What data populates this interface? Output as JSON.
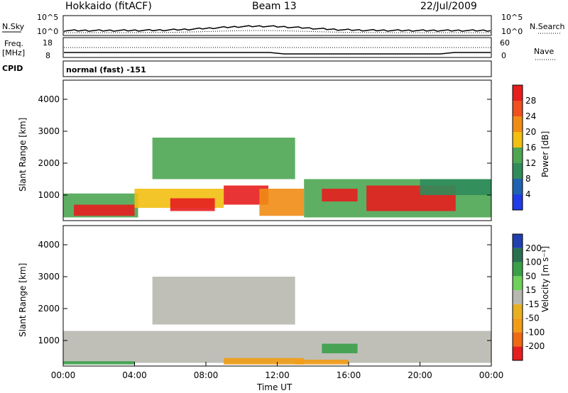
{
  "header": {
    "left_title": "Hokkaido (fitACF)",
    "center_title": "Beam 13",
    "date": "22/Jul/2009"
  },
  "panels": {
    "nsky_label": "N.Sky",
    "nsearch_label": "N.Search",
    "noise_ticks": [
      "10^5",
      "10^0"
    ],
    "noise_right_ticks": [
      "10^5",
      "10^0"
    ],
    "freq_label_1": "Freq.",
    "freq_label_2": "[MHz]",
    "freq_ticks": [
      "18",
      "8"
    ],
    "nave_label": "Nave",
    "nave_ticks": [
      "60",
      "0"
    ],
    "cpid_label": "CPID",
    "cpid_value": "normal (fast) -151"
  },
  "colors": {
    "power_scale": [
      "#1f3ae6",
      "#1f63b0",
      "#2f8c5a",
      "#4da652",
      "#f2bf12",
      "#f08c14",
      "#f0501e",
      "#e61e1e"
    ],
    "velocity_scale": [
      "#e61e1e",
      "#ee6a14",
      "#f29c16",
      "#e8b020",
      "#b8b8b0",
      "#6fd05a",
      "#3aa048",
      "#2a7050",
      "#2040b0"
    ]
  },
  "chart_data": [
    {
      "type": "heatmap",
      "quantity": "Power",
      "ylabel": "Slant Range [km]",
      "colorbar_label": "Power [dB]",
      "colorbar_ticks": [
        "28",
        "24",
        "20",
        "16",
        "12",
        "8",
        "4"
      ],
      "y_ticks": [
        "4000",
        "3000",
        "2000",
        "1000"
      ],
      "ylim": [
        200,
        4600
      ],
      "xlim_hours": [
        0,
        24
      ],
      "regions": [
        {
          "t0": 0.0,
          "t1": 4.2,
          "r0": 300,
          "r1": 1050,
          "db": 14
        },
        {
          "t0": 0.6,
          "t1": 4.0,
          "r0": 350,
          "r1": 700,
          "db": 28
        },
        {
          "t0": 4.0,
          "t1": 9.0,
          "r0": 600,
          "r1": 1200,
          "db": 18
        },
        {
          "t0": 6.0,
          "t1": 8.5,
          "r0": 500,
          "r1": 900,
          "db": 28
        },
        {
          "t0": 5.0,
          "t1": 13.0,
          "r0": 1500,
          "r1": 2800,
          "db": 12
        },
        {
          "t0": 9.0,
          "t1": 11.5,
          "r0": 700,
          "r1": 1300,
          "db": 28
        },
        {
          "t0": 11.0,
          "t1": 13.5,
          "r0": 350,
          "r1": 1200,
          "db": 22
        },
        {
          "t0": 13.5,
          "t1": 24.0,
          "r0": 300,
          "r1": 1500,
          "db": 14
        },
        {
          "t0": 14.5,
          "t1": 16.5,
          "r0": 800,
          "r1": 1200,
          "db": 28
        },
        {
          "t0": 17.0,
          "t1": 22.0,
          "r0": 500,
          "r1": 1300,
          "db": 28
        },
        {
          "t0": 20.0,
          "t1": 24.0,
          "r0": 1000,
          "r1": 1500,
          "db": 8
        }
      ]
    },
    {
      "type": "heatmap",
      "quantity": "Velocity",
      "ylabel": "Slant Range [km]",
      "colorbar_label": "Velocity [m s⁻¹]",
      "colorbar_ticks": [
        "200",
        "100",
        "50",
        "15",
        "-15",
        "-50",
        "-100",
        "-200"
      ],
      "y_ticks": [
        "4000",
        "3000",
        "2000",
        "1000"
      ],
      "x_ticks": [
        "00:00",
        "04:00",
        "08:00",
        "12:00",
        "16:00",
        "20:00",
        "00:00"
      ],
      "xlabel": "Time UT",
      "ylim": [
        200,
        4600
      ],
      "xlim_hours": [
        0,
        24
      ],
      "regions": [
        {
          "t0": 0.0,
          "t1": 24.0,
          "r0": 300,
          "r1": 1300,
          "v": 0
        },
        {
          "t0": 5.0,
          "t1": 13.0,
          "r0": 1500,
          "r1": 3000,
          "v": 0
        },
        {
          "t0": 0.0,
          "t1": 4.0,
          "r0": 250,
          "r1": 350,
          "v": 60
        },
        {
          "t0": 9.0,
          "t1": 13.5,
          "r0": 250,
          "r1": 450,
          "v": -60
        },
        {
          "t0": 14.5,
          "t1": 16.5,
          "r0": 600,
          "r1": 900,
          "v": 60
        },
        {
          "t0": 13.0,
          "t1": 16.0,
          "r0": 250,
          "r1": 400,
          "v": -60
        }
      ]
    }
  ]
}
